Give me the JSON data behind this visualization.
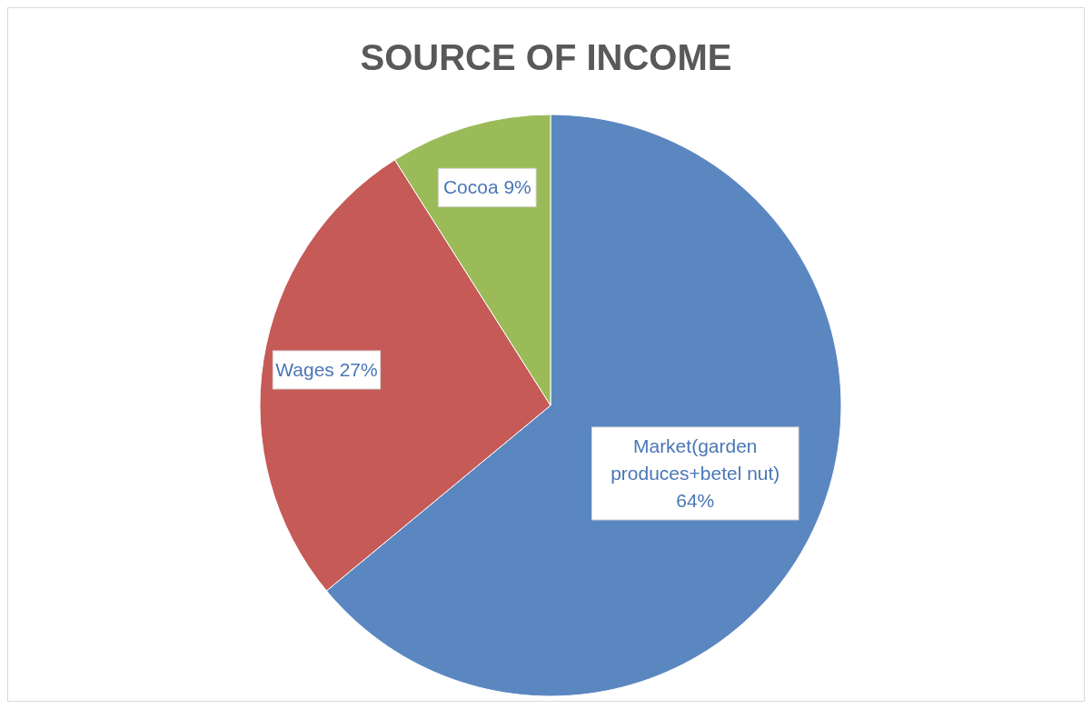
{
  "chart_data": {
    "type": "pie",
    "title": "SOURCE OF INCOME",
    "categories": [
      "Market(garden produces+betel nut)",
      "Wages",
      "Cocoa"
    ],
    "values": [
      64,
      27,
      9
    ],
    "value_labels": [
      "64%",
      "27%",
      "9%"
    ],
    "colors": [
      "#5b87c1",
      "#c55a57",
      "#9bbb59"
    ]
  }
}
